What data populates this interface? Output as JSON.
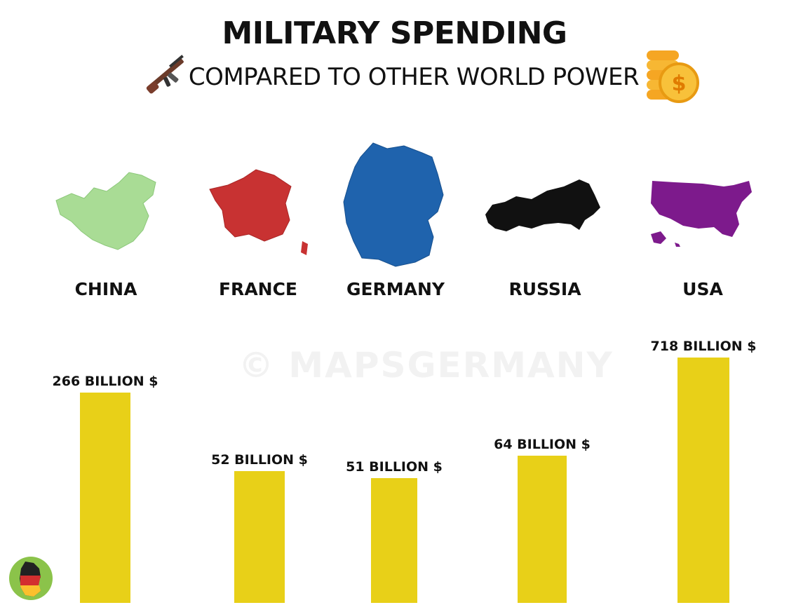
{
  "title": "MILITARY SPENDING",
  "subtitle": "COMPARED TO OTHER WORLD POWER",
  "watermark": "© MAPSGERMANY",
  "icons": {
    "left": "rifle-icon",
    "right": "coins-icon",
    "logo": "germany-map-logo-icon"
  },
  "countries": [
    {
      "name": "CHINA",
      "map_color": "#a9dc95"
    },
    {
      "name": "FRANCE",
      "map_color": "#c83232"
    },
    {
      "name": "GERMANY",
      "map_color": "#1f63ad"
    },
    {
      "name": "RUSSIA",
      "map_color": "#111111"
    },
    {
      "name": "USA",
      "map_color": "#7d1a8c"
    }
  ],
  "colors": {
    "bar": "#e8d018",
    "text": "#111111"
  },
  "chart_data": {
    "type": "bar",
    "title": "MILITARY SPENDING",
    "subtitle": "COMPARED TO OTHER WORLD POWER",
    "categories": [
      "CHINA",
      "FRANCE",
      "GERMANY",
      "RUSSIA",
      "USA"
    ],
    "values": [
      266,
      52,
      51,
      64,
      718
    ],
    "labels": [
      "266 BILLION $",
      "52 BILLION $",
      "51 BILLION $",
      "64 BILLION $",
      "718 BILLION $"
    ],
    "units": "BILLION $",
    "grid": false,
    "legend": "none"
  }
}
